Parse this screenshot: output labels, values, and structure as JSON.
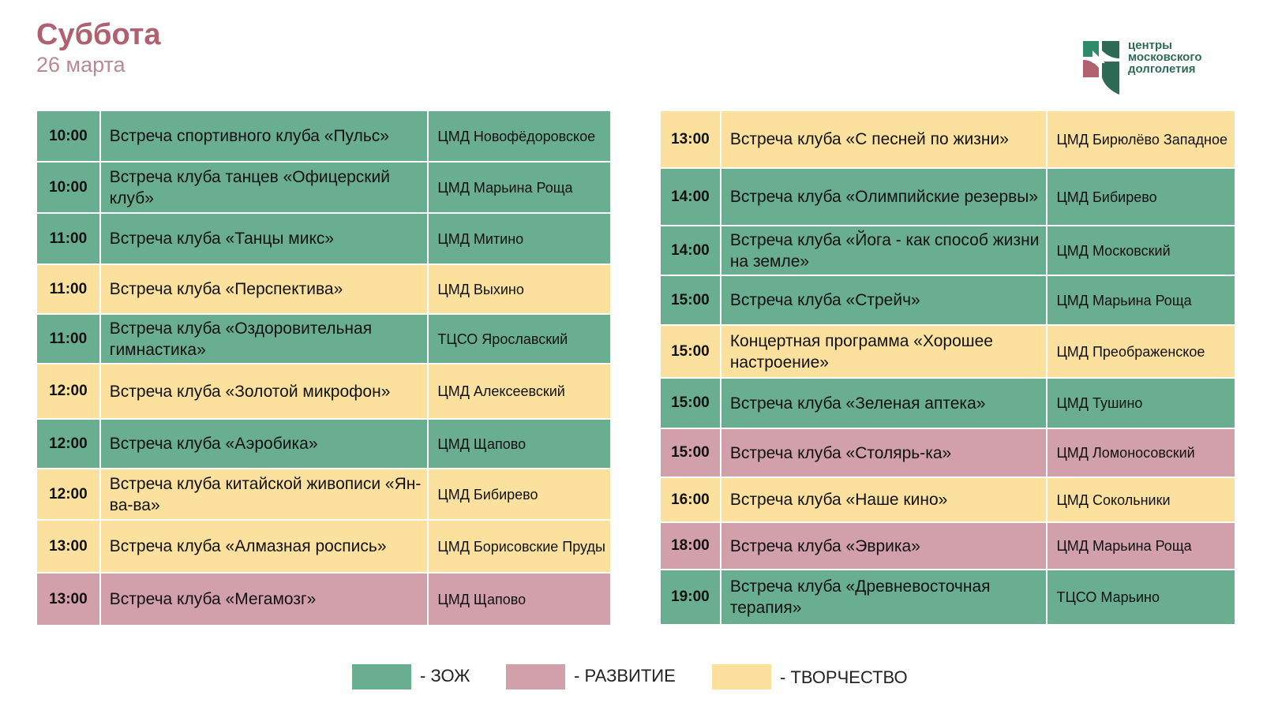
{
  "header": {
    "day": "Суббота",
    "date": "26 марта"
  },
  "logo": {
    "line1": "центры",
    "line2": "московского",
    "line3": "долголетия"
  },
  "colors": {
    "zoj": "#6aae91",
    "razvitie": "#d2a0aa",
    "tvorchestvo": "#fbe19d"
  },
  "left_rows": [
    {
      "time": "10:00",
      "event": "Встреча спортивного клуба «Пульс»",
      "place": "ЦМД Новофёдоровское",
      "category": "zoj"
    },
    {
      "time": "10:00",
      "event": "Встреча клуба танцев «Офицерский клуб»",
      "place": "ЦМД Марьина Роща",
      "category": "zoj"
    },
    {
      "time": "11:00",
      "event": "Встреча клуба «Танцы микс»",
      "place": "ЦМД Митино",
      "category": "zoj"
    },
    {
      "time": "11:00",
      "event": "Встреча клуба «Перспектива»",
      "place": "ЦМД Выхино",
      "category": "tvor"
    },
    {
      "time": "11:00",
      "event": "Встреча клуба «Оздоровительная гимнастика»",
      "place": "ТЦСО Ярославский",
      "category": "zoj"
    },
    {
      "time": "12:00",
      "event": "Встреча клуба «Золотой микрофон»",
      "place": "ЦМД Алексеевский",
      "category": "tvor"
    },
    {
      "time": "12:00",
      "event": "Встреча клуба «Аэробика»",
      "place": "ЦМД Щапово",
      "category": "zoj"
    },
    {
      "time": "12:00",
      "event": "Встреча клуба китайской живописи «Ян-ва-ва»",
      "place": "ЦМД Бибирево",
      "category": "tvor"
    },
    {
      "time": "13:00",
      "event": "Встреча клуба «Алмазная роспись»",
      "place": "ЦМД Борисовские Пруды",
      "category": "tvor"
    },
    {
      "time": "13:00",
      "event": "Встреча клуба «Мегамозг»",
      "place": "ЦМД Щапово",
      "category": "razv"
    }
  ],
  "right_rows": [
    {
      "time": "13:00",
      "event": "Встреча клуба «С песней по жизни»",
      "place": "ЦМД Бирюлёво Западное",
      "category": "tvor"
    },
    {
      "time": "14:00",
      "event": "Встреча клуба «Олимпийские резервы»",
      "place": "ЦМД Бибирево",
      "category": "zoj"
    },
    {
      "time": "14:00",
      "event": "Встреча клуба «Йога - как способ жизни на земле»",
      "place": "ЦМД Московский",
      "category": "zoj"
    },
    {
      "time": "15:00",
      "event": "Встреча клуба «Стрейч»",
      "place": "ЦМД Марьина Роща",
      "category": "zoj"
    },
    {
      "time": "15:00",
      "event": "Концертная программа «Хорошее настроение»",
      "place": "ЦМД Преображенское",
      "category": "tvor"
    },
    {
      "time": "15:00",
      "event": "Встреча клуба «Зеленая аптека»",
      "place": "ЦМД Тушино",
      "category": "zoj"
    },
    {
      "time": "15:00",
      "event": "Встреча клуба «Столярь-ка»",
      "place": "ЦМД Ломоносовский",
      "category": "razv"
    },
    {
      "time": "16:00",
      "event": "Встреча клуба «Наше кино»",
      "place": "ЦМД Сокольники",
      "category": "tvor"
    },
    {
      "time": "18:00",
      "event": "Встреча клуба «Эврика»",
      "place": "ЦМД Марьина Роща",
      "category": "razv"
    },
    {
      "time": "19:00",
      "event": "Встреча клуба «Древневосточная терапия»",
      "place": "ТЦСО Марьино",
      "category": "zoj"
    }
  ],
  "legend": [
    {
      "label": "- ЗОЖ",
      "category": "zoj"
    },
    {
      "label": "- РАЗВИТИЕ",
      "category": "razv"
    },
    {
      "label": "- ТВОРЧЕСТВО",
      "category": "tvor"
    }
  ]
}
